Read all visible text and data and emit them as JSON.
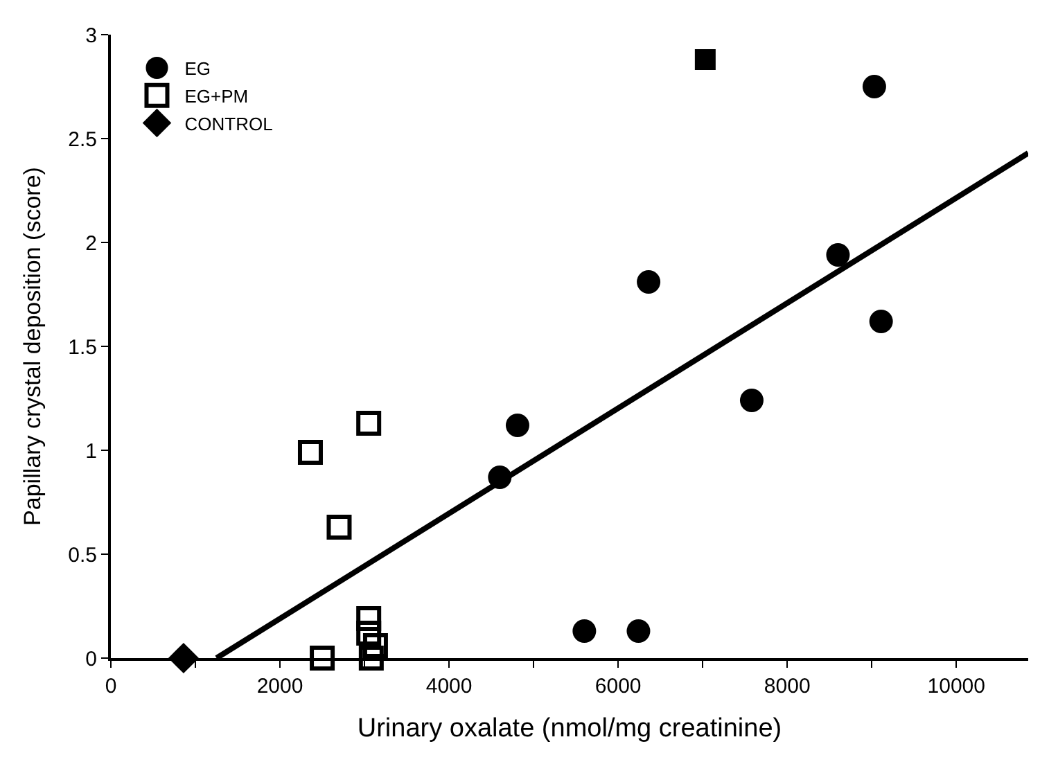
{
  "chart_data": {
    "type": "scatter",
    "xlabel": "Urinary oxalate (nmol/mg creatinine)",
    "ylabel": "Papillary crystal deposition (score)",
    "series": [
      {
        "name": "EG",
        "color": "#000000",
        "marker": "circle",
        "x": [
          4600,
          4810,
          5600,
          6240,
          6360,
          7580,
          8600,
          9030,
          9110
        ],
        "values": [
          0.87,
          1.12,
          0.13,
          0.13,
          1.81,
          1.24,
          1.94,
          2.75,
          1.62
        ]
      },
      {
        "name": "EG+PM",
        "color": "#000000",
        "marker": "square-open",
        "x": [
          2360,
          3050,
          2700,
          2500,
          3050,
          3050,
          3130,
          3080
        ],
        "values": [
          0.99,
          1.13,
          0.63,
          0,
          0.19,
          0.12,
          0.06,
          0
        ]
      },
      {
        "color": "#000000",
        "marker": "square",
        "x": [
          7030
        ],
        "values": [
          2.88
        ]
      },
      {
        "name": "CONTROL",
        "color": "#000000",
        "marker": "diamond",
        "x": [
          860
        ],
        "values": [
          0
        ]
      },
      {
        "type": "line",
        "color": "#000000",
        "x": [
          1250,
          10850
        ],
        "values": [
          0,
          2.43
        ]
      }
    ],
    "xlim": [
      0,
      10850
    ],
    "ylim": [
      0,
      3
    ],
    "xticks": [
      0,
      {
        "value": 1000,
        "label": null
      },
      2000,
      {
        "value": 3000,
        "label": null
      },
      4000,
      {
        "value": 5000,
        "label": null
      },
      6000,
      {
        "value": 7000,
        "label": null
      },
      8000,
      {
        "value": 9000,
        "label": null
      },
      10000
    ],
    "yticks": [
      0,
      0.5,
      1,
      1.5,
      2,
      2.5,
      3
    ],
    "legend": "top left"
  }
}
